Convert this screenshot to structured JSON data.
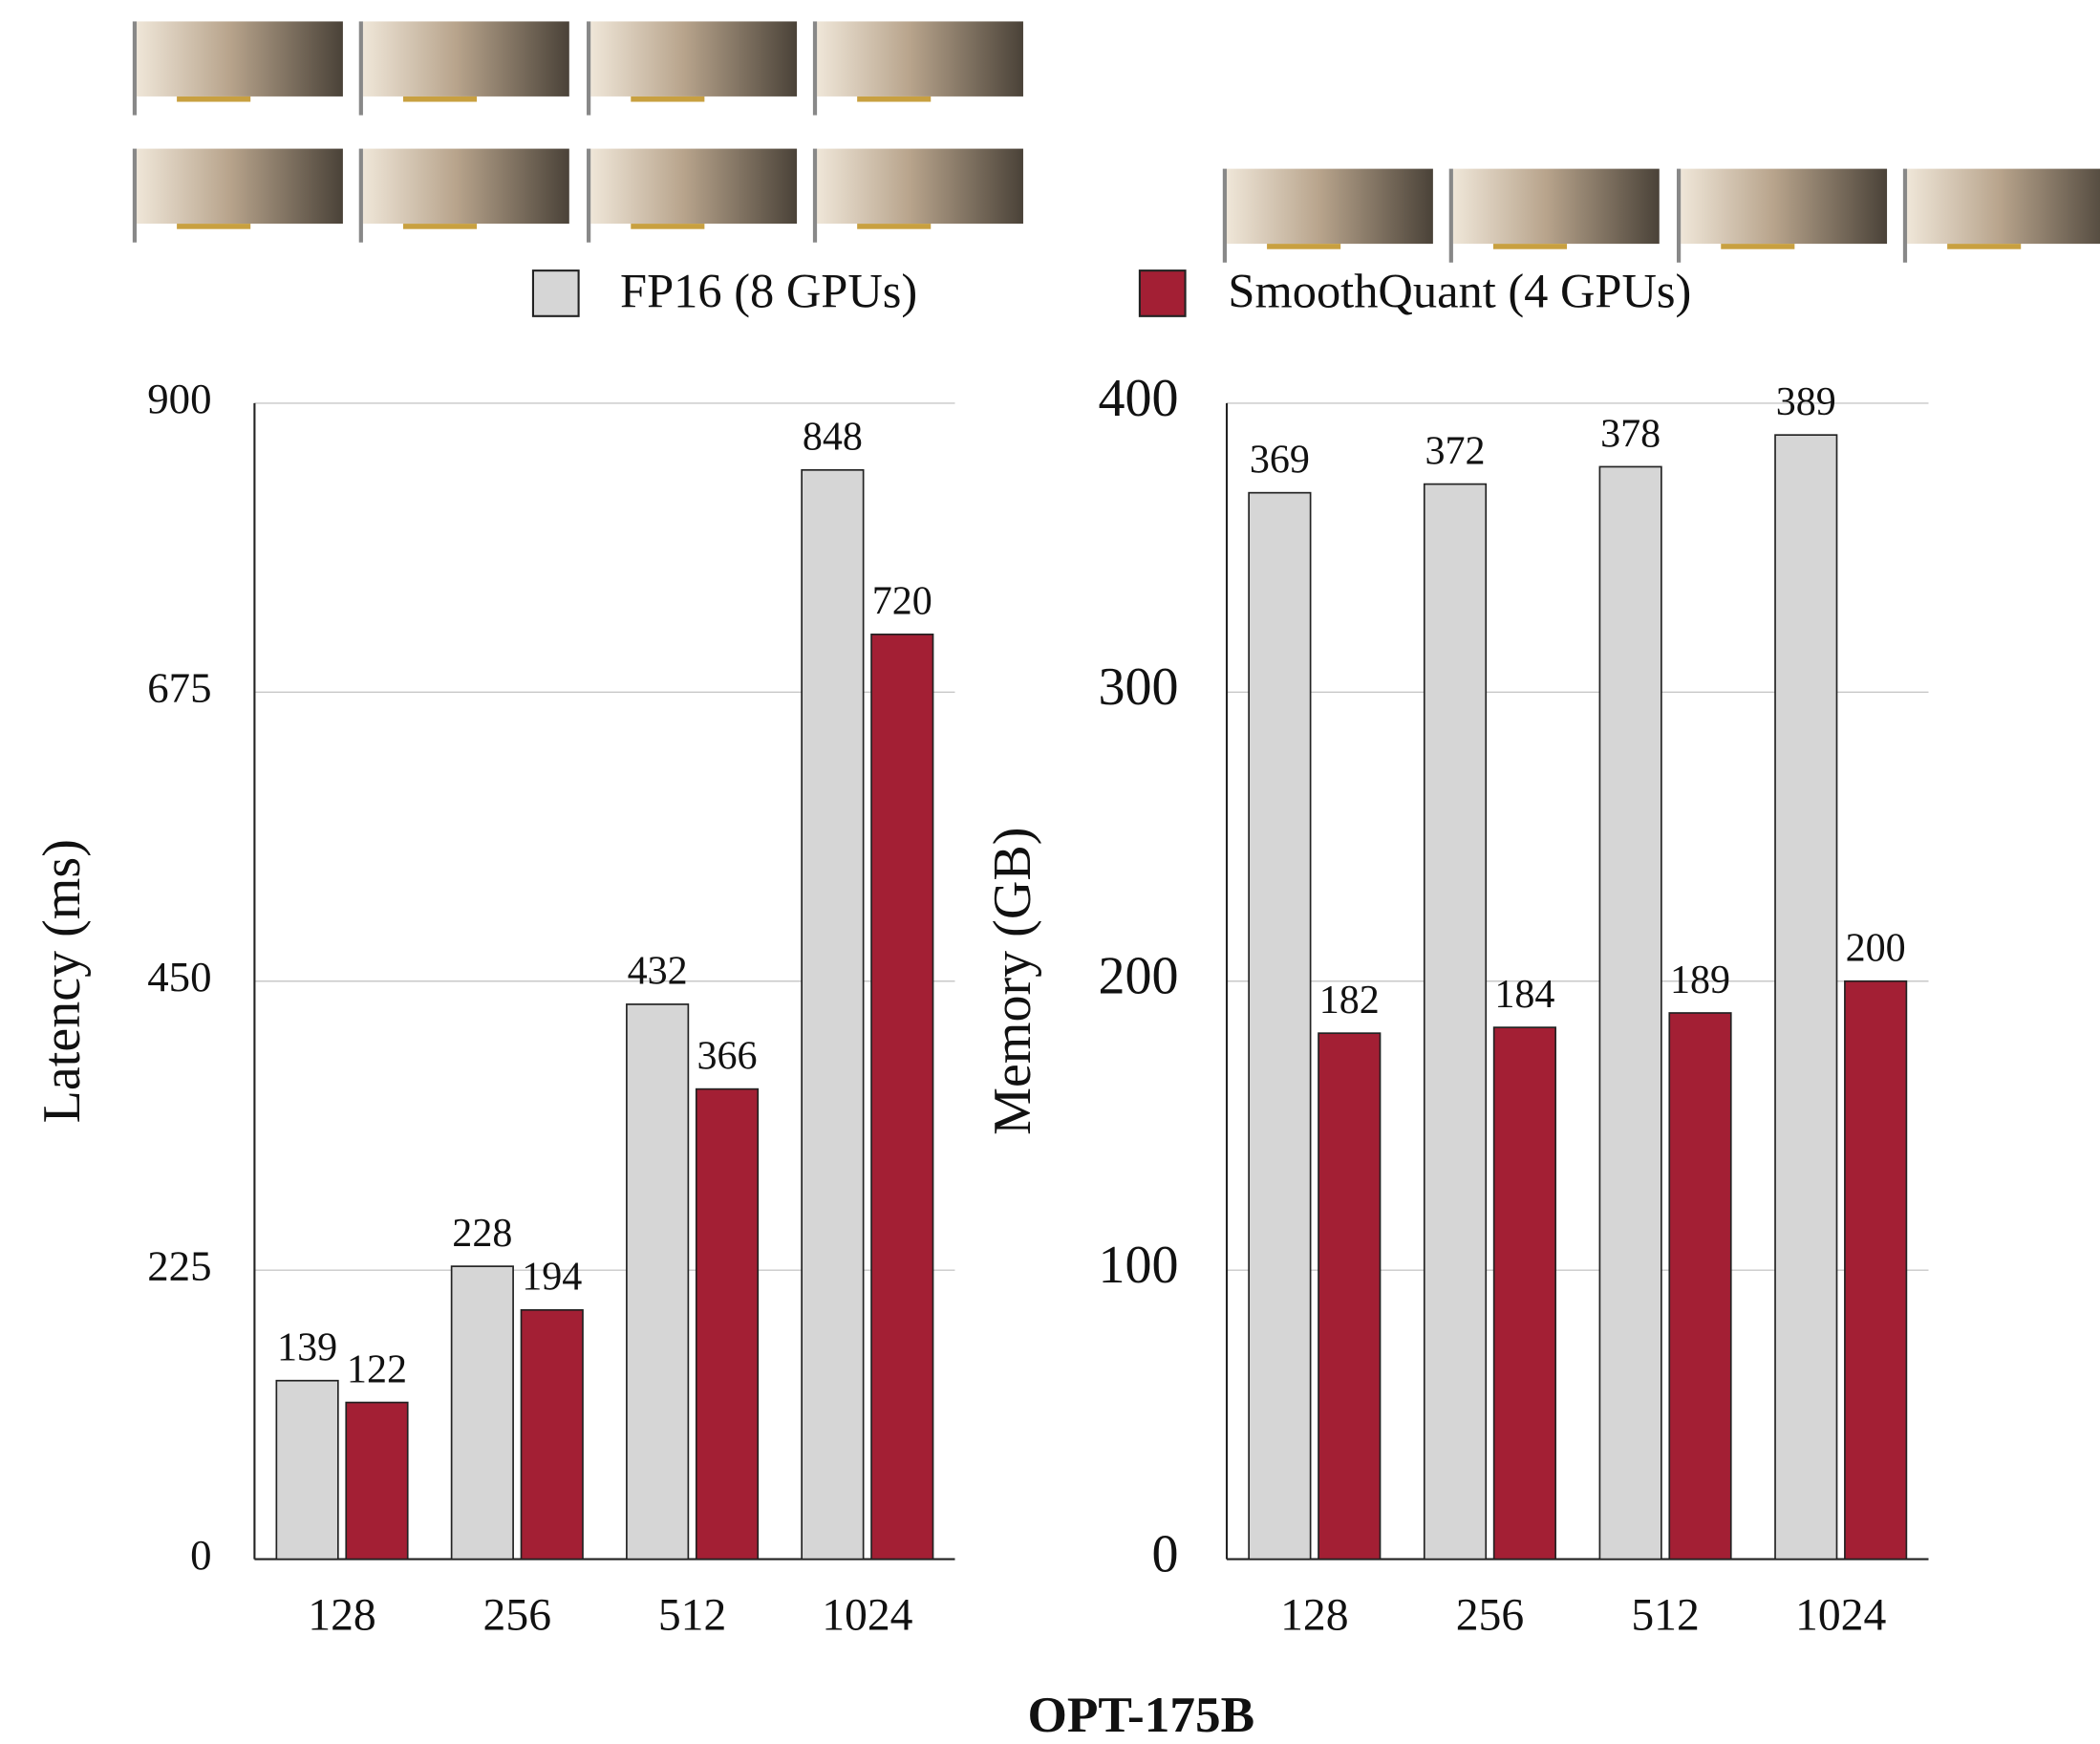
{
  "chart_data": [
    {
      "type": "bar",
      "ylabel": "Latency (ms)",
      "categories": [
        "128",
        "256",
        "512",
        "1024"
      ],
      "series": [
        {
          "name": "FP16 (8 GPUs)",
          "color": "#d6d6d6",
          "values": [
            139,
            228,
            432,
            848
          ]
        },
        {
          "name": "SmoothQuant (4 GPUs)",
          "color": "#a31f34",
          "values": [
            122,
            194,
            366,
            720
          ]
        }
      ],
      "ylim": [
        0,
        900
      ],
      "yticks": [
        0,
        225,
        450,
        675,
        900
      ],
      "grid": true
    },
    {
      "type": "bar",
      "ylabel": "Memory (GB)",
      "categories": [
        "128",
        "256",
        "512",
        "1024"
      ],
      "series": [
        {
          "color": "#d6d6d6",
          "values": [
            369,
            372,
            378,
            389
          ]
        },
        {
          "color": "#a31f34",
          "values": [
            182,
            184,
            189,
            200
          ]
        }
      ],
      "ylim": [
        0,
        400
      ],
      "yticks": [
        0,
        100,
        200,
        300,
        400
      ],
      "grid": true
    }
  ],
  "xlabel": "OPT-175B"
}
